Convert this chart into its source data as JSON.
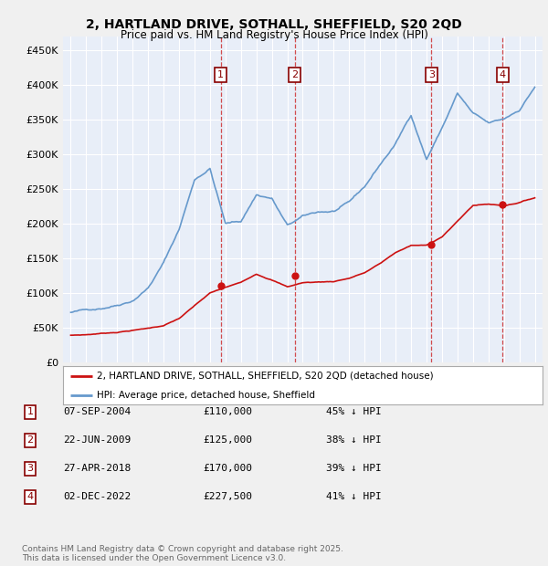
{
  "title_line1": "2, HARTLAND DRIVE, SOTHALL, SHEFFIELD, S20 2QD",
  "title_line2": "Price paid vs. HM Land Registry's House Price Index (HPI)",
  "ylim": [
    0,
    470000
  ],
  "yticks": [
    0,
    50000,
    100000,
    150000,
    200000,
    250000,
    300000,
    350000,
    400000,
    450000
  ],
  "ytick_labels": [
    "£0",
    "£50K",
    "£100K",
    "£150K",
    "£200K",
    "£250K",
    "£300K",
    "£350K",
    "£400K",
    "£450K"
  ],
  "xlim_start": 1994.5,
  "xlim_end": 2025.5,
  "plot_bg_color": "#e8eef8",
  "grid_color": "#ffffff",
  "hpi_color": "#6699cc",
  "price_color": "#cc1111",
  "legend_label_price": "2, HARTLAND DRIVE, SOTHALL, SHEFFIELD, S20 2QD (detached house)",
  "legend_label_hpi": "HPI: Average price, detached house, Sheffield",
  "transactions": [
    {
      "num": 1,
      "date": "07-SEP-2004",
      "price": 110000,
      "pct": "45%",
      "year": 2004.69
    },
    {
      "num": 2,
      "date": "22-JUN-2009",
      "price": 125000,
      "pct": "38%",
      "year": 2009.47
    },
    {
      "num": 3,
      "date": "27-APR-2018",
      "price": 170000,
      "pct": "39%",
      "year": 2018.32
    },
    {
      "num": 4,
      "date": "02-DEC-2022",
      "price": 227500,
      "pct": "41%",
      "year": 2022.92
    }
  ],
  "footer_line1": "Contains HM Land Registry data © Crown copyright and database right 2025.",
  "footer_line2": "This data is licensed under the Open Government Licence v3.0.",
  "hpi_years": [
    1995,
    1996,
    1997,
    1998,
    1999,
    2000,
    2001,
    2002,
    2003,
    2004,
    2005,
    2006,
    2007,
    2008,
    2009,
    2010,
    2011,
    2012,
    2013,
    2014,
    2015,
    2016,
    2017,
    2018,
    2019,
    2020,
    2021,
    2022,
    2023,
    2024,
    2025
  ],
  "hpi_values": [
    72000,
    75000,
    79000,
    85000,
    93000,
    112000,
    148000,
    196000,
    268000,
    285000,
    205000,
    208000,
    247000,
    242000,
    202000,
    214000,
    220000,
    221000,
    232000,
    254000,
    286000,
    316000,
    358000,
    295000,
    340000,
    390000,
    360000,
    344000,
    349000,
    363000,
    397000
  ],
  "price_years": [
    1995,
    1996,
    1997,
    1998,
    1999,
    2000,
    2001,
    2002,
    2003,
    2004,
    2005,
    2006,
    2007,
    2008,
    2009,
    2010,
    2011,
    2012,
    2013,
    2014,
    2015,
    2016,
    2017,
    2018,
    2019,
    2020,
    2021,
    2022,
    2023,
    2024,
    2025
  ],
  "price_values": [
    39000,
    40000,
    42000,
    44000,
    47000,
    50000,
    54000,
    64000,
    82000,
    100000,
    108000,
    115000,
    128000,
    120000,
    110000,
    116000,
    117000,
    118000,
    123000,
    131000,
    144000,
    160000,
    170000,
    170000,
    183000,
    205000,
    228000,
    230000,
    228000,
    233000,
    240000
  ]
}
